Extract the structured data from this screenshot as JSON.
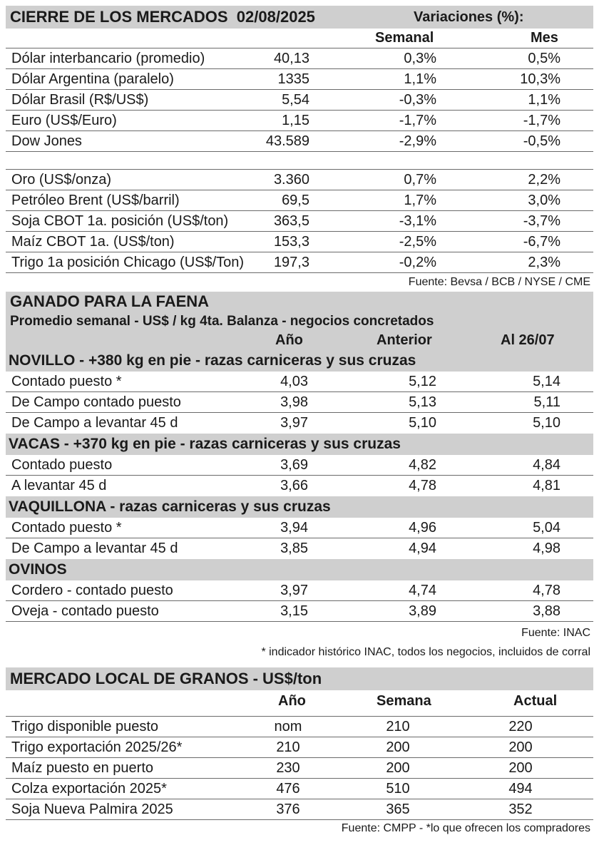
{
  "markets": {
    "title": "CIERRE DE LOS MERCADOS  02/08/2025",
    "variations_label": "Variaciones (%):",
    "col_week": "Semanal",
    "col_month": "Mes",
    "rows": [
      {
        "name": "Dólar interbancario (promedio)",
        "value": "40,13",
        "week": "0,3%",
        "month": "0,5%"
      },
      {
        "name": "Dólar Argentina (paralelo)",
        "value": "1335",
        "week": "1,1%",
        "month": "10,3%"
      },
      {
        "name": "Dólar Brasil (R$/US$)",
        "value": "5,54",
        "week": "-0,3%",
        "month": "1,1%"
      },
      {
        "name": "Euro (US$/Euro)",
        "value": "1,15",
        "week": "-1,7%",
        "month": "-1,7%"
      },
      {
        "name": "Dow Jones",
        "value": "43.589",
        "week": "-2,9%",
        "month": "-0,5%"
      }
    ],
    "rows2": [
      {
        "name": "Oro (US$/onza)",
        "value": "3.360",
        "week": "0,7%",
        "month": "2,2%"
      },
      {
        "name": "Petróleo Brent (US$/barril)",
        "value": "69,5",
        "week": "1,7%",
        "month": "3,0%"
      },
      {
        "name": "Soja CBOT 1a. posición (US$/ton)",
        "value": "363,5",
        "week": "-3,1%",
        "month": "-3,7%"
      },
      {
        "name": "Maíz CBOT 1a. (US$/ton)",
        "value": "153,3",
        "week": "-2,5%",
        "month": "-6,7%"
      },
      {
        "name": "Trigo 1a posición Chicago (US$/Ton)",
        "value": "197,3",
        "week": "-0,2%",
        "month": "2,3%"
      }
    ],
    "source": "Fuente: Bevsa / BCB / NYSE / CME"
  },
  "cattle": {
    "title": "GANADO PARA LA FAENA",
    "subtitle": "Promedio semanal - US$ / kg 4ta. Balanza - negocios concretados",
    "col_year": "Año",
    "col_prev": "Anterior",
    "col_current": "Al 26/07",
    "categories": [
      {
        "name": "NOVILLO - +380 kg en pie - razas carniceras y sus cruzas",
        "rows": [
          {
            "name": "Contado puesto *",
            "year": "4,03",
            "prev": "5,12",
            "current": "5,14"
          },
          {
            "name": "De Campo contado puesto",
            "year": "3,98",
            "prev": "5,13",
            "current": "5,11"
          },
          {
            "name": "De Campo a levantar 45 d",
            "year": "3,97",
            "prev": "5,10",
            "current": "5,10"
          }
        ]
      },
      {
        "name": "VACAS - +370 kg en pie - razas carniceras y sus cruzas",
        "rows": [
          {
            "name": "Contado puesto",
            "year": "3,69",
            "prev": "4,82",
            "current": "4,84"
          },
          {
            "name": "A levantar 45 d",
            "year": "3,66",
            "prev": "4,78",
            "current": "4,81"
          }
        ]
      },
      {
        "name": "VAQUILLONA - razas carniceras y sus cruzas",
        "rows": [
          {
            "name": "Contado puesto *",
            "year": "3,94",
            "prev": "4,96",
            "current": "5,04"
          },
          {
            "name": "De Campo a levantar 45 d",
            "year": "3,85",
            "prev": "4,94",
            "current": "4,98"
          }
        ]
      },
      {
        "name": "OVINOS",
        "rows": [
          {
            "name": "Cordero - contado puesto",
            "year": "3,97",
            "prev": "4,74",
            "current": "4,78"
          },
          {
            "name": "Oveja - contado puesto",
            "year": "3,15",
            "prev": "3,89",
            "current": "3,88"
          }
        ]
      }
    ],
    "source": "Fuente: INAC",
    "footnote": "* indicador histórico INAC, todos los negocios, incluidos de corral"
  },
  "grains": {
    "title": "MERCADO LOCAL DE GRANOS - US$/ton",
    "col_year": "Año",
    "col_week": "Semana",
    "col_current": "Actual",
    "rows": [
      {
        "name": "Trigo disponible puesto",
        "year": "nom",
        "week": "210",
        "current": "220"
      },
      {
        "name": "Trigo exportación 2025/26*",
        "year": "210",
        "week": "200",
        "current": "200"
      },
      {
        "name": "Maíz puesto en puerto",
        "year": "230",
        "week": "200",
        "current": "200"
      },
      {
        "name": "Colza exportación 2025*",
        "year": "476",
        "week": "510",
        "current": "494"
      },
      {
        "name": "Soja Nueva Palmira 2025",
        "year": "376",
        "week": "365",
        "current": "352"
      }
    ],
    "source": "Fuente: CMPP - *lo que ofrecen los compradores"
  }
}
